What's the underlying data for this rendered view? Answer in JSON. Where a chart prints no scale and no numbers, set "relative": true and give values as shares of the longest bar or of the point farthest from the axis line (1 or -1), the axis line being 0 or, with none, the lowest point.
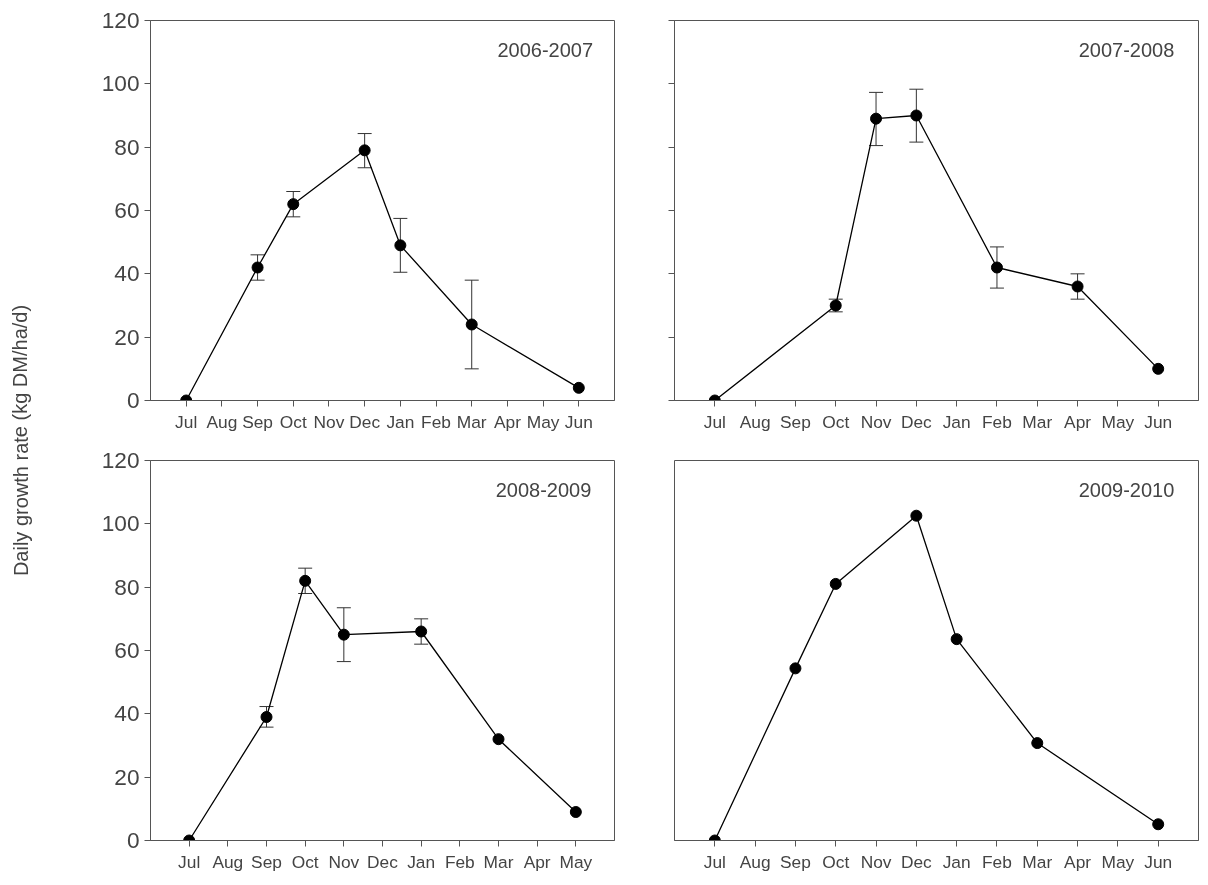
{
  "chart_data": [
    {
      "type": "line",
      "title": "2006-2007",
      "ylabel": "Daily growth rate (kg DM/ha/d)",
      "categories": [
        "Jul",
        "Aug",
        "Sep",
        "Oct",
        "Nov",
        "Dec",
        "Jan",
        "Feb",
        "Mar",
        "Apr",
        "May",
        "Jun"
      ],
      "series": [
        {
          "color": "#000000",
          "values": [
            0,
            null,
            42,
            62,
            null,
            79,
            49,
            null,
            24,
            null,
            null,
            4
          ],
          "errors": [
            null,
            null,
            [
              38,
              46
            ],
            [
              58,
              66
            ],
            null,
            [
              73.5,
              84.3
            ],
            [
              40.5,
              57.5
            ],
            null,
            [
              10,
              38
            ],
            null,
            null,
            null
          ]
        }
      ],
      "ylim": [
        0,
        120
      ],
      "yticks": [
        0,
        20,
        40,
        60,
        80,
        100,
        120
      ],
      "marker": "circle",
      "line_style": "solid",
      "grid": false
    },
    {
      "type": "line",
      "title": "2007-2008",
      "categories": [
        "Jul",
        "Aug",
        "Sep",
        "Oct",
        "Nov",
        "Dec",
        "Jan",
        "Feb",
        "Mar",
        "Apr",
        "May",
        "Jun"
      ],
      "series": [
        {
          "color": "#000000",
          "values": [
            0,
            null,
            null,
            30,
            89,
            90,
            null,
            42,
            null,
            36,
            null,
            10
          ],
          "errors": [
            null,
            null,
            null,
            [
              28,
              32
            ],
            [
              80.5,
              97.3
            ],
            [
              81.6,
              98.3
            ],
            null,
            [
              35.5,
              48.5
            ],
            null,
            [
              32,
              40
            ],
            null,
            null
          ]
        }
      ],
      "ylim": [
        0,
        120
      ],
      "yticks": [
        0,
        20,
        40,
        60,
        80,
        100,
        120
      ],
      "tick_labels": "x",
      "marker": "circle",
      "line_style": "solid",
      "grid": false
    },
    {
      "type": "line",
      "title": "2008-2009",
      "categories": [
        "Jul",
        "Aug",
        "Sep",
        "Oct",
        "Nov",
        "Dec",
        "Jan",
        "Feb",
        "Mar",
        "Apr",
        "May"
      ],
      "series": [
        {
          "color": "#000000",
          "values": [
            0,
            null,
            39,
            82,
            65,
            null,
            66,
            null,
            32,
            null,
            9
          ],
          "errors": [
            null,
            null,
            [
              35.8,
              42.3
            ],
            [
              78,
              86
            ],
            [
              56.5,
              73.5
            ],
            null,
            [
              62,
              70
            ],
            null,
            null,
            null,
            null
          ]
        }
      ],
      "ylim": [
        0,
        120
      ],
      "yticks": [
        0,
        20,
        40,
        60,
        80,
        100,
        120
      ],
      "marker": "circle",
      "line_style": "solid",
      "grid": false
    },
    {
      "type": "line",
      "title": "2009-2010",
      "relative": true,
      "categories": [
        "Jul",
        "Aug",
        "Sep",
        "Oct",
        "Nov",
        "Dec",
        "Jan",
        "Feb",
        "Mar",
        "Apr",
        "May",
        "Jun"
      ],
      "series": [
        {
          "color": "#000000",
          "values": [
            0,
            null,
            0.53,
            0.79,
            null,
            1,
            0.62,
            null,
            0.3,
            null,
            null,
            0.05
          ]
        }
      ],
      "tick_labels": "x",
      "marker": "circle",
      "line_style": "solid",
      "grid": false
    }
  ]
}
